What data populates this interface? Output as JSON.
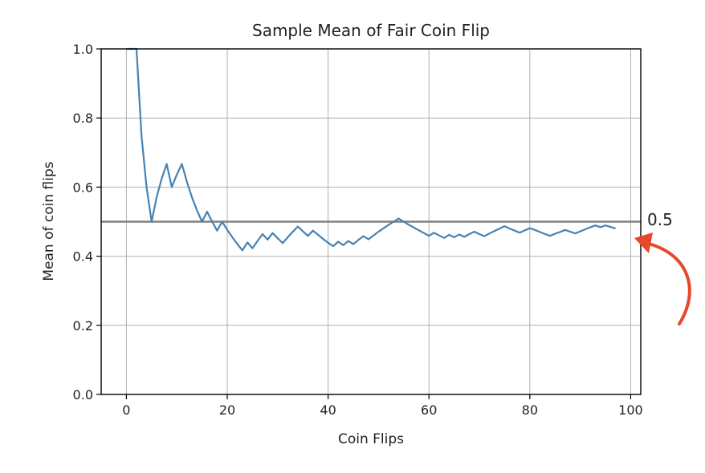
{
  "chart_data": {
    "type": "line",
    "title": "Sample Mean of Fair Coin Flip",
    "xlabel": "Coin Flips",
    "ylabel": "Mean of coin flips",
    "xlim": [
      -5,
      102
    ],
    "ylim": [
      0.0,
      1.0
    ],
    "x_ticks": [
      0,
      20,
      40,
      60,
      80,
      100
    ],
    "y_ticks": [
      0.0,
      0.2,
      0.4,
      0.6,
      0.8,
      1.0
    ],
    "x_tick_labels": [
      "0",
      "20",
      "40",
      "60",
      "80",
      "100"
    ],
    "y_tick_labels": [
      "0.0",
      "0.2",
      "0.4",
      "0.6",
      "0.8",
      "1.0"
    ],
    "grid": true,
    "series": [
      {
        "color": "#4682b4",
        "x": [
          0,
          1,
          2,
          3,
          4,
          5,
          6,
          7,
          8,
          9,
          10,
          11,
          12,
          13,
          14,
          15,
          16,
          17,
          18,
          19,
          20,
          21,
          22,
          23,
          24,
          25,
          26,
          27,
          28,
          29,
          30,
          31,
          32,
          33,
          34,
          35,
          36,
          37,
          38,
          39,
          40,
          41,
          42,
          43,
          44,
          45,
          46,
          47,
          48,
          49,
          50,
          51,
          52,
          53,
          54,
          55,
          56,
          57,
          58,
          59,
          60,
          61,
          62,
          63,
          64,
          65,
          66,
          67,
          68,
          69,
          70,
          71,
          72,
          73,
          74,
          75,
          76,
          77,
          78,
          79,
          80,
          81,
          82,
          83,
          84,
          85,
          86,
          87,
          88,
          89,
          90,
          91,
          92,
          93,
          94,
          95,
          96,
          97
        ],
        "values": [
          1.0,
          1.0,
          1.0,
          0.75,
          0.6,
          0.5,
          0.571,
          0.625,
          0.667,
          0.6,
          0.636,
          0.667,
          0.615,
          0.571,
          0.533,
          0.5,
          0.529,
          0.5,
          0.474,
          0.5,
          0.476,
          0.455,
          0.435,
          0.417,
          0.44,
          0.423,
          0.444,
          0.464,
          0.448,
          0.467,
          0.452,
          0.438,
          0.455,
          0.471,
          0.486,
          0.472,
          0.459,
          0.474,
          0.462,
          0.45,
          0.439,
          0.429,
          0.442,
          0.432,
          0.444,
          0.435,
          0.447,
          0.458,
          0.449,
          0.46,
          0.471,
          0.481,
          0.491,
          0.5,
          0.509,
          0.5,
          0.491,
          0.483,
          0.475,
          0.467,
          0.459,
          0.468,
          0.46,
          0.453,
          0.462,
          0.455,
          0.463,
          0.456,
          0.464,
          0.471,
          0.464,
          0.458,
          0.466,
          0.473,
          0.48,
          0.487,
          0.48,
          0.474,
          0.468,
          0.475,
          0.481,
          0.476,
          0.47,
          0.464,
          0.459,
          0.465,
          0.47,
          0.476,
          0.471,
          0.466,
          0.472,
          0.478,
          0.484,
          0.489,
          0.484,
          0.489,
          0.485,
          0.48
        ]
      }
    ],
    "reference_line": {
      "y": 0.5,
      "label": "0.5",
      "color": "#808080"
    },
    "annotation_arrow_color": "#e8472a"
  }
}
